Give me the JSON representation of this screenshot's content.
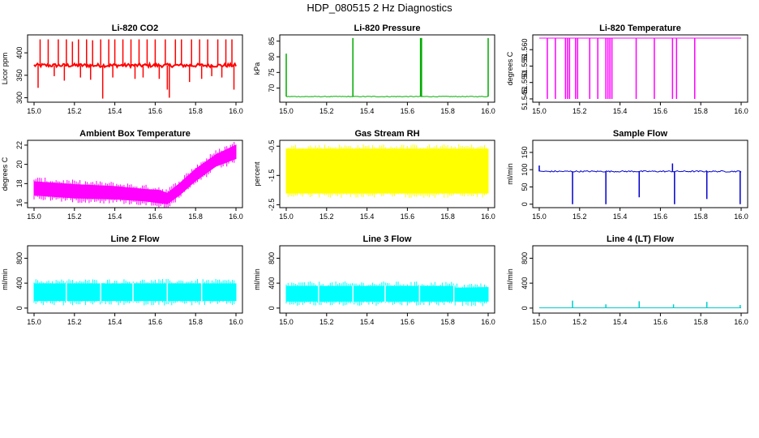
{
  "page_title": "HDP_080515  2 Hz Diagnostics",
  "chart_data": [
    {
      "type": "line",
      "title": "Li-820 CO2",
      "ylabel": "Licor ppm",
      "color": "#ff0000",
      "xlim": [
        15.0,
        16.0
      ],
      "ylim": [
        290,
        440
      ],
      "xticks": [
        "15.0",
        "15.2",
        "15.4",
        "15.6",
        "15.8",
        "16.0"
      ],
      "yticks": [
        300,
        350,
        400
      ],
      "base": 372,
      "noise": 4,
      "spikes_up": [
        [
          15.03,
          430
        ],
        [
          15.07,
          430
        ],
        [
          15.12,
          430
        ],
        [
          15.16,
          430
        ],
        [
          15.19,
          425
        ],
        [
          15.22,
          430
        ],
        [
          15.26,
          430
        ],
        [
          15.29,
          428
        ],
        [
          15.33,
          430
        ],
        [
          15.37,
          430
        ],
        [
          15.4,
          430
        ],
        [
          15.44,
          430
        ],
        [
          15.48,
          430
        ],
        [
          15.52,
          430
        ],
        [
          15.56,
          430
        ],
        [
          15.6,
          430
        ],
        [
          15.65,
          430
        ],
        [
          15.7,
          430
        ],
        [
          15.73,
          430
        ],
        [
          15.78,
          430
        ],
        [
          15.82,
          430
        ],
        [
          15.86,
          430
        ],
        [
          15.91,
          430
        ],
        [
          15.95,
          430
        ],
        [
          15.98,
          430
        ]
      ],
      "spikes_down": [
        [
          15.02,
          322
        ],
        [
          15.1,
          348
        ],
        [
          15.15,
          338
        ],
        [
          15.23,
          345
        ],
        [
          15.28,
          340
        ],
        [
          15.34,
          298
        ],
        [
          15.39,
          345
        ],
        [
          15.5,
          342
        ],
        [
          15.54,
          345
        ],
        [
          15.62,
          342
        ],
        [
          15.66,
          318
        ],
        [
          15.67,
          300
        ],
        [
          15.77,
          335
        ],
        [
          15.83,
          342
        ],
        [
          15.88,
          348
        ],
        [
          15.93,
          345
        ],
        [
          15.99,
          318
        ]
      ]
    },
    {
      "type": "line",
      "title": "Li-820 Pressure",
      "ylabel": "kPa",
      "color": "#00aa00",
      "xlim": [
        15.0,
        16.0
      ],
      "ylim": [
        65.5,
        87
      ],
      "xticks": [
        "15.0",
        "15.2",
        "15.4",
        "15.6",
        "15.8",
        "16.0"
      ],
      "yticks": [
        70,
        75,
        80,
        85
      ],
      "base": 67.3,
      "noise": 0.1,
      "spikes_up": [
        [
          15.0,
          81
        ],
        [
          15.33,
          86
        ],
        [
          15.665,
          86
        ],
        [
          15.67,
          86
        ],
        [
          16.0,
          86
        ]
      ],
      "spikes_down": []
    },
    {
      "type": "line",
      "title": "Li-820 Temperature",
      "ylabel": "degrees C",
      "color": "#ff00ff",
      "xlim": [
        15.0,
        16.0
      ],
      "ylim": [
        51.544,
        51.5645
      ],
      "xticks": [
        "15.0",
        "15.2",
        "15.4",
        "15.6",
        "15.8",
        "16.0"
      ],
      "yticks": [
        "51.545",
        "51.550",
        "51.555",
        "51.560"
      ],
      "ytick_values": [
        51.545,
        51.55,
        51.555,
        51.56
      ],
      "base": 51.5635,
      "noise": 0,
      "spikes_up": [],
      "spikes_down": [
        [
          15.04,
          51.545
        ],
        [
          15.08,
          51.545
        ],
        [
          15.13,
          51.545
        ],
        [
          15.14,
          51.545
        ],
        [
          15.15,
          51.545
        ],
        [
          15.18,
          51.545
        ],
        [
          15.19,
          51.545
        ],
        [
          15.25,
          51.545
        ],
        [
          15.29,
          51.545
        ],
        [
          15.33,
          51.545
        ],
        [
          15.34,
          51.545
        ],
        [
          15.35,
          51.545
        ],
        [
          15.36,
          51.545
        ],
        [
          15.48,
          51.545
        ],
        [
          15.57,
          51.545
        ],
        [
          15.66,
          51.545
        ],
        [
          15.68,
          51.545
        ],
        [
          15.77,
          51.545
        ]
      ]
    },
    {
      "type": "area",
      "title": "Ambient Box Temperature",
      "ylabel": "degrees C",
      "color": "#ff00ff",
      "xlim": [
        15.0,
        16.0
      ],
      "ylim": [
        15.5,
        22.5
      ],
      "xticks": [
        "15.0",
        "15.2",
        "15.4",
        "15.6",
        "15.8",
        "16.0"
      ],
      "yticks": [
        16,
        18,
        20,
        22
      ],
      "upper": [
        [
          15.0,
          18.2
        ],
        [
          15.2,
          17.9
        ],
        [
          15.4,
          17.7
        ],
        [
          15.55,
          17.4
        ],
        [
          15.62,
          17.3
        ],
        [
          15.66,
          17.0
        ],
        [
          15.72,
          18.0
        ],
        [
          15.8,
          19.5
        ],
        [
          15.9,
          21.0
        ],
        [
          16.0,
          22.0
        ]
      ],
      "lower": [
        [
          15.0,
          16.8
        ],
        [
          15.2,
          16.5
        ],
        [
          15.4,
          16.4
        ],
        [
          15.55,
          16.2
        ],
        [
          15.62,
          16.0
        ],
        [
          15.66,
          15.9
        ],
        [
          15.72,
          16.8
        ],
        [
          15.8,
          18.3
        ],
        [
          15.9,
          19.8
        ],
        [
          16.0,
          20.6
        ]
      ]
    },
    {
      "type": "area",
      "title": "Gas Stream RH",
      "ylabel": "percent",
      "color": "#ffff00",
      "xlim": [
        15.0,
        16.0
      ],
      "ylim": [
        -2.6,
        -0.3
      ],
      "xticks": [
        "15.0",
        "15.2",
        "15.4",
        "15.6",
        "15.8",
        "16.0"
      ],
      "yticks": [
        "-2.5",
        "-1.5",
        "-0.5"
      ],
      "ytick_values": [
        -2.5,
        -1.5,
        -0.5
      ],
      "upper": [
        [
          15.0,
          -0.6
        ],
        [
          16.0,
          -0.6
        ]
      ],
      "lower": [
        [
          15.0,
          -2.1
        ],
        [
          16.0,
          -2.1
        ]
      ]
    },
    {
      "type": "line",
      "title": "Sample Flow",
      "ylabel": "ml/min",
      "color": "#0000cc",
      "xlim": [
        15.0,
        16.0
      ],
      "ylim": [
        -10,
        185
      ],
      "xticks": [
        "15.0",
        "15.2",
        "15.4",
        "15.6",
        "15.8",
        "16.0"
      ],
      "yticks": [
        0,
        50,
        100,
        150
      ],
      "base": 95,
      "noise": 2,
      "spikes_up": [
        [
          15.0,
          112
        ],
        [
          15.66,
          118
        ]
      ],
      "spikes_down": [
        [
          15.165,
          0
        ],
        [
          15.33,
          0
        ],
        [
          15.495,
          20
        ],
        [
          15.67,
          0
        ],
        [
          15.83,
          15
        ],
        [
          15.995,
          0
        ]
      ]
    },
    {
      "type": "area",
      "title": "Line 2 Flow",
      "ylabel": "ml/min",
      "color": "#00ffff",
      "xlim": [
        15.0,
        16.0
      ],
      "ylim": [
        -80,
        1000
      ],
      "xticks": [
        "15.0",
        "15.2",
        "15.4",
        "15.6",
        "15.8",
        "16.0"
      ],
      "yticks": [
        0,
        400,
        800
      ],
      "upper": [
        [
          15.0,
          390
        ],
        [
          16.0,
          390
        ]
      ],
      "lower": [
        [
          15.0,
          120
        ],
        [
          16.0,
          120
        ]
      ],
      "gaps": [
        15.16,
        15.33,
        15.49,
        15.66,
        15.83
      ]
    },
    {
      "type": "area",
      "title": "Line 3 Flow",
      "ylabel": "ml/min",
      "color": "#00ffff",
      "xlim": [
        15.0,
        16.0
      ],
      "ylim": [
        -80,
        1000
      ],
      "xticks": [
        "15.0",
        "15.2",
        "15.4",
        "15.6",
        "15.8",
        "16.0"
      ],
      "yticks": [
        0,
        400,
        800
      ],
      "upper": [
        [
          15.0,
          350
        ],
        [
          15.83,
          350
        ],
        [
          15.84,
          320
        ],
        [
          16.0,
          330
        ]
      ],
      "lower": [
        [
          15.0,
          110
        ],
        [
          16.0,
          110
        ]
      ],
      "gaps": [
        15.16,
        15.33,
        15.49,
        15.66,
        15.83
      ]
    },
    {
      "type": "line",
      "title": "Line 4 (LT) Flow",
      "ylabel": "ml/min",
      "color": "#00cccc",
      "xlim": [
        15.0,
        16.0
      ],
      "ylim": [
        -80,
        1000
      ],
      "xticks": [
        "15.0",
        "15.2",
        "15.4",
        "15.6",
        "15.8",
        "16.0"
      ],
      "yticks": [
        0,
        400,
        800
      ],
      "base": 5,
      "noise": 0,
      "spikes_up": [
        [
          15.165,
          120
        ],
        [
          15.33,
          60
        ],
        [
          15.495,
          110
        ],
        [
          15.665,
          60
        ],
        [
          15.83,
          100
        ],
        [
          15.995,
          50
        ]
      ],
      "spikes_down": []
    }
  ]
}
